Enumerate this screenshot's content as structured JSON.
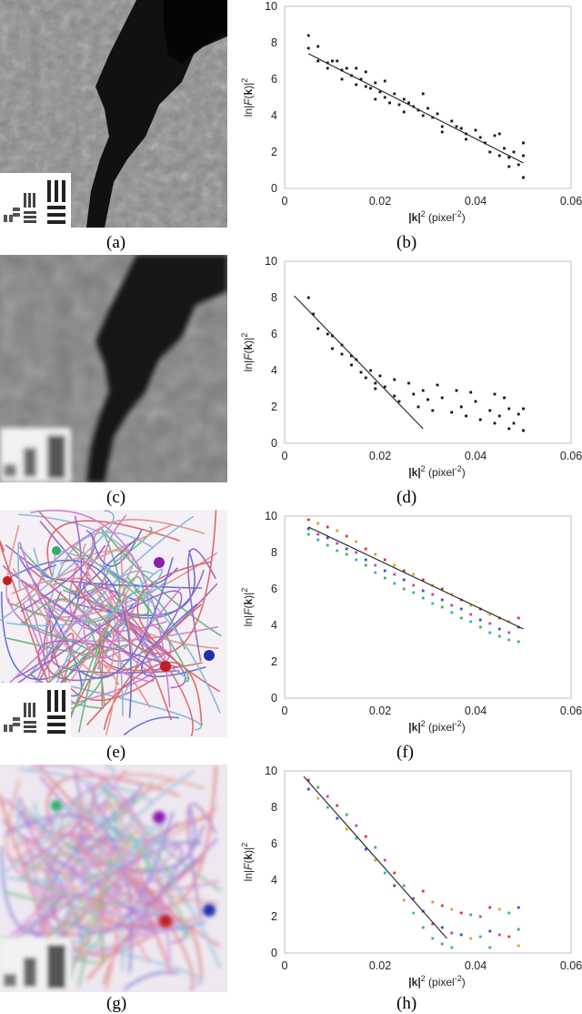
{
  "captions": [
    "(a)",
    "(b)",
    "(c)",
    "(d)",
    "(e)",
    "(f)",
    "(g)",
    "(h)"
  ],
  "images": [
    {
      "caption": "(a)",
      "style": "grayscale-sharp"
    },
    {
      "caption": "(c)",
      "style": "grayscale-blurred"
    },
    {
      "caption": "(e)",
      "style": "color-fibers-sharp"
    },
    {
      "caption": "(g)",
      "style": "color-fibers-blurred"
    }
  ],
  "chart_data": [
    {
      "panel": "(b)",
      "type": "scatter",
      "xlabel_bold": "|k|",
      "xlabel_rest": "2 (pixel-2)",
      "ylabel": "ln|F(k)|2",
      "xticks": [
        "0",
        "0.02",
        "0.04",
        "0.06"
      ],
      "yticks": [
        "0",
        "2",
        "4",
        "6",
        "8",
        "10"
      ],
      "xlim": [
        0,
        0.06
      ],
      "ylim": [
        0,
        10
      ],
      "colored": false,
      "points": [
        [
          0.005,
          8.4
        ],
        [
          0.005,
          7.7
        ],
        [
          0.007,
          7.8
        ],
        [
          0.007,
          7.0
        ],
        [
          0.009,
          6.9
        ],
        [
          0.009,
          6.6
        ],
        [
          0.01,
          7.0
        ],
        [
          0.011,
          7.0
        ],
        [
          0.012,
          6.5
        ],
        [
          0.012,
          6.0
        ],
        [
          0.013,
          6.6
        ],
        [
          0.014,
          6.2
        ],
        [
          0.015,
          6.6
        ],
        [
          0.015,
          5.7
        ],
        [
          0.016,
          6.0
        ],
        [
          0.017,
          6.4
        ],
        [
          0.017,
          5.6
        ],
        [
          0.018,
          5.5
        ],
        [
          0.019,
          5.8
        ],
        [
          0.019,
          4.9
        ],
        [
          0.02,
          5.3
        ],
        [
          0.021,
          5.9
        ],
        [
          0.021,
          5.0
        ],
        [
          0.022,
          4.7
        ],
        [
          0.023,
          5.2
        ],
        [
          0.024,
          4.6
        ],
        [
          0.025,
          4.9
        ],
        [
          0.025,
          4.2
        ],
        [
          0.026,
          4.7
        ],
        [
          0.027,
          4.5
        ],
        [
          0.028,
          4.3
        ],
        [
          0.029,
          5.2
        ],
        [
          0.029,
          4.0
        ],
        [
          0.03,
          4.4
        ],
        [
          0.031,
          3.9
        ],
        [
          0.032,
          4.1
        ],
        [
          0.033,
          3.4
        ],
        [
          0.033,
          3.1
        ],
        [
          0.035,
          3.7
        ],
        [
          0.036,
          3.4
        ],
        [
          0.037,
          3.3
        ],
        [
          0.038,
          3.0
        ],
        [
          0.038,
          2.7
        ],
        [
          0.04,
          3.2
        ],
        [
          0.041,
          2.8
        ],
        [
          0.042,
          2.5
        ],
        [
          0.043,
          2.0
        ],
        [
          0.044,
          2.9
        ],
        [
          0.045,
          3.0
        ],
        [
          0.045,
          1.8
        ],
        [
          0.046,
          2.2
        ],
        [
          0.047,
          1.7
        ],
        [
          0.047,
          1.2
        ],
        [
          0.048,
          2.0
        ],
        [
          0.049,
          1.3
        ],
        [
          0.05,
          2.5
        ],
        [
          0.05,
          1.8
        ],
        [
          0.05,
          0.6
        ]
      ],
      "fit": [
        [
          0.005,
          7.4
        ],
        [
          0.05,
          1.4
        ]
      ]
    },
    {
      "panel": "(d)",
      "type": "scatter",
      "xlabel_bold": "|k|",
      "xlabel_rest": "2 (pixel-2)",
      "ylabel": "ln|F(k)|2",
      "xticks": [
        "0",
        "0.02",
        "0.04",
        "0.06"
      ],
      "yticks": [
        "0",
        "2",
        "4",
        "6",
        "8",
        "10"
      ],
      "xlim": [
        0,
        0.06
      ],
      "ylim": [
        0,
        10
      ],
      "colored": false,
      "points": [
        [
          0.005,
          8.0
        ],
        [
          0.006,
          7.1
        ],
        [
          0.007,
          6.3
        ],
        [
          0.009,
          6.0
        ],
        [
          0.01,
          5.9
        ],
        [
          0.01,
          5.2
        ],
        [
          0.012,
          5.4
        ],
        [
          0.012,
          4.9
        ],
        [
          0.014,
          4.8
        ],
        [
          0.014,
          4.3
        ],
        [
          0.015,
          4.6
        ],
        [
          0.016,
          3.9
        ],
        [
          0.017,
          3.6
        ],
        [
          0.018,
          4.0
        ],
        [
          0.019,
          3.3
        ],
        [
          0.019,
          3.0
        ],
        [
          0.02,
          3.7
        ],
        [
          0.021,
          3.1
        ],
        [
          0.023,
          3.5
        ],
        [
          0.023,
          2.6
        ],
        [
          0.024,
          2.3
        ],
        [
          0.026,
          3.3
        ],
        [
          0.027,
          2.7
        ],
        [
          0.028,
          2.0
        ],
        [
          0.029,
          2.9
        ],
        [
          0.03,
          2.4
        ],
        [
          0.031,
          1.8
        ],
        [
          0.032,
          3.2
        ],
        [
          0.033,
          2.5
        ],
        [
          0.035,
          1.7
        ],
        [
          0.036,
          2.9
        ],
        [
          0.037,
          2.0
        ],
        [
          0.038,
          1.5
        ],
        [
          0.039,
          2.8
        ],
        [
          0.04,
          2.3
        ],
        [
          0.041,
          1.3
        ],
        [
          0.043,
          1.8
        ],
        [
          0.044,
          1.1
        ],
        [
          0.044,
          2.7
        ],
        [
          0.045,
          1.5
        ],
        [
          0.046,
          2.5
        ],
        [
          0.047,
          0.8
        ],
        [
          0.047,
          1.9
        ],
        [
          0.048,
          1.1
        ],
        [
          0.049,
          1.6
        ],
        [
          0.05,
          1.9
        ],
        [
          0.05,
          0.7
        ]
      ],
      "fit": [
        [
          0.002,
          8.1
        ],
        [
          0.029,
          0.8
        ]
      ]
    },
    {
      "panel": "(f)",
      "type": "scatter",
      "xlabel_bold": "|k|",
      "xlabel_rest": "2 (pixel-2)",
      "ylabel": "ln|F(k)|2",
      "xticks": [
        "0",
        "0.02",
        "0.04",
        "0.06"
      ],
      "yticks": [
        "0",
        "2",
        "4",
        "6",
        "8",
        "10"
      ],
      "xlim": [
        0,
        0.06
      ],
      "ylim": [
        0,
        10
      ],
      "colored": true,
      "points": [
        [
          0.005,
          9.8
        ],
        [
          0.005,
          9.3
        ],
        [
          0.005,
          9.0
        ],
        [
          0.007,
          9.6
        ],
        [
          0.007,
          9.0
        ],
        [
          0.007,
          8.7
        ],
        [
          0.009,
          9.4
        ],
        [
          0.009,
          8.8
        ],
        [
          0.009,
          8.4
        ],
        [
          0.011,
          9.2
        ],
        [
          0.011,
          8.5
        ],
        [
          0.011,
          8.1
        ],
        [
          0.013,
          8.9
        ],
        [
          0.013,
          8.2
        ],
        [
          0.013,
          7.9
        ],
        [
          0.015,
          8.6
        ],
        [
          0.015,
          8.0
        ],
        [
          0.015,
          7.6
        ],
        [
          0.017,
          8.2
        ],
        [
          0.017,
          7.6
        ],
        [
          0.017,
          7.3
        ],
        [
          0.019,
          7.9
        ],
        [
          0.019,
          7.3
        ],
        [
          0.019,
          6.9
        ],
        [
          0.021,
          7.6
        ],
        [
          0.021,
          7.0
        ],
        [
          0.021,
          6.6
        ],
        [
          0.023,
          7.3
        ],
        [
          0.023,
          6.8
        ],
        [
          0.023,
          6.3
        ],
        [
          0.025,
          7.0
        ],
        [
          0.025,
          6.5
        ],
        [
          0.025,
          6.0
        ],
        [
          0.027,
          6.8
        ],
        [
          0.027,
          6.2
        ],
        [
          0.027,
          5.8
        ],
        [
          0.029,
          6.5
        ],
        [
          0.029,
          5.9
        ],
        [
          0.029,
          5.5
        ],
        [
          0.031,
          6.2
        ],
        [
          0.031,
          5.7
        ],
        [
          0.031,
          5.2
        ],
        [
          0.033,
          6.0
        ],
        [
          0.033,
          5.4
        ],
        [
          0.033,
          5.0
        ],
        [
          0.035,
          5.7
        ],
        [
          0.035,
          5.1
        ],
        [
          0.035,
          4.7
        ],
        [
          0.037,
          5.4
        ],
        [
          0.037,
          4.9
        ],
        [
          0.037,
          4.4
        ],
        [
          0.039,
          5.1
        ],
        [
          0.039,
          4.6
        ],
        [
          0.039,
          4.2
        ],
        [
          0.041,
          4.9
        ],
        [
          0.041,
          4.3
        ],
        [
          0.041,
          3.9
        ],
        [
          0.043,
          4.6
        ],
        [
          0.043,
          4.1
        ],
        [
          0.043,
          3.6
        ],
        [
          0.045,
          4.4
        ],
        [
          0.045,
          3.8
        ],
        [
          0.045,
          3.4
        ],
        [
          0.047,
          4.2
        ],
        [
          0.047,
          3.6
        ],
        [
          0.047,
          3.2
        ],
        [
          0.049,
          4.4
        ],
        [
          0.049,
          3.9
        ],
        [
          0.049,
          3.1
        ]
      ],
      "fit": [
        [
          0.005,
          9.4
        ],
        [
          0.05,
          3.8
        ]
      ]
    },
    {
      "panel": "(h)",
      "type": "scatter",
      "xlabel_bold": "|k|",
      "xlabel_rest": "2 (pixel-2)",
      "ylabel": "ln|F(k)|2",
      "xticks": [
        "0",
        "0.02",
        "0.04",
        "0.06"
      ],
      "yticks": [
        "0",
        "2",
        "4",
        "6",
        "8",
        "10"
      ],
      "xlim": [
        0,
        0.06
      ],
      "ylim": [
        0,
        10
      ],
      "colored": true,
      "points": [
        [
          0.005,
          9.5
        ],
        [
          0.005,
          9.0
        ],
        [
          0.007,
          9.1
        ],
        [
          0.007,
          8.5
        ],
        [
          0.009,
          8.6
        ],
        [
          0.009,
          8.0
        ],
        [
          0.011,
          8.1
        ],
        [
          0.011,
          7.4
        ],
        [
          0.013,
          7.6
        ],
        [
          0.013,
          6.8
        ],
        [
          0.015,
          7.0
        ],
        [
          0.015,
          6.3
        ],
        [
          0.017,
          6.4
        ],
        [
          0.017,
          5.7
        ],
        [
          0.019,
          5.8
        ],
        [
          0.019,
          5.1
        ],
        [
          0.021,
          5.1
        ],
        [
          0.021,
          4.4
        ],
        [
          0.023,
          4.4
        ],
        [
          0.023,
          3.7
        ],
        [
          0.025,
          3.7
        ],
        [
          0.025,
          2.9
        ],
        [
          0.027,
          3.0
        ],
        [
          0.027,
          2.2
        ],
        [
          0.029,
          3.4
        ],
        [
          0.029,
          2.3
        ],
        [
          0.029,
          1.4
        ],
        [
          0.031,
          2.8
        ],
        [
          0.031,
          1.6
        ],
        [
          0.031,
          0.8
        ],
        [
          0.033,
          2.6
        ],
        [
          0.033,
          1.4
        ],
        [
          0.033,
          0.5
        ],
        [
          0.035,
          2.4
        ],
        [
          0.035,
          1.1
        ],
        [
          0.035,
          0.3
        ],
        [
          0.037,
          2.2
        ],
        [
          0.037,
          1.0
        ],
        [
          0.039,
          2.1
        ],
        [
          0.039,
          0.8
        ],
        [
          0.041,
          2.0
        ],
        [
          0.041,
          0.9
        ],
        [
          0.043,
          2.5
        ],
        [
          0.043,
          1.2
        ],
        [
          0.043,
          0.3
        ],
        [
          0.045,
          2.4
        ],
        [
          0.045,
          1.0
        ],
        [
          0.047,
          2.2
        ],
        [
          0.047,
          0.9
        ],
        [
          0.049,
          2.5
        ],
        [
          0.049,
          1.3
        ],
        [
          0.049,
          0.4
        ]
      ],
      "fit": [
        [
          0.004,
          9.7
        ],
        [
          0.034,
          0.8
        ]
      ]
    }
  ]
}
